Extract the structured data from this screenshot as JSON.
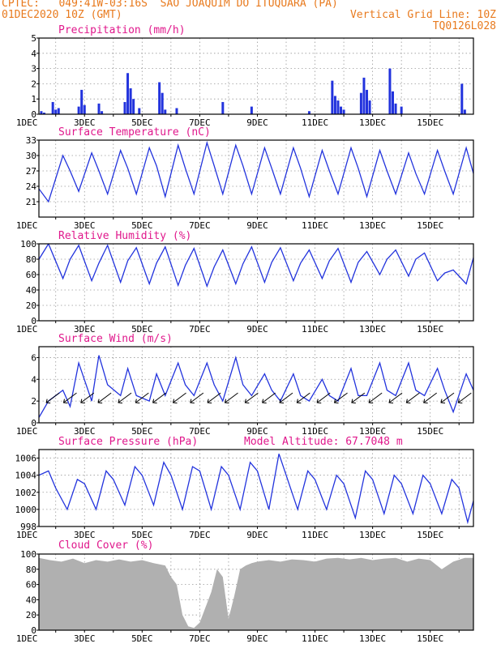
{
  "header": {
    "line1_left": "CPTEC:   049:41W-03:16S  SAO JOAQUIM DO ITUQUARA (PA)",
    "line2_left": "01DEC2020 10Z (GMT)",
    "line2_right": "Vertical Grid Line: 10Z",
    "line3_right": "TQ0126L028"
  },
  "colors": {
    "header": "#e87a1e",
    "title": "#e0188c",
    "line": "#2233dd",
    "bar": "#2233dd",
    "cloud": "#b0b0b0",
    "arrow": "#000000"
  },
  "chart_data": [
    {
      "id": "precip",
      "type": "bar",
      "title": "Precipitation (mm/h)",
      "ylim": [
        0,
        5
      ],
      "yticks": [
        0,
        1,
        2,
        3,
        4,
        5
      ],
      "x_range_days": [
        1.417,
        16.5
      ],
      "xtick_labels": [
        "1DEC",
        "3DEC",
        "5DEC",
        "7DEC",
        "9DEC",
        "11DEC",
        "13DEC",
        "15DEC"
      ],
      "x_days": [
        1.5,
        1.6,
        1.9,
        2.0,
        2.1,
        2.8,
        2.9,
        3.0,
        3.5,
        3.6,
        4.4,
        4.5,
        4.6,
        4.7,
        4.9,
        5.6,
        5.7,
        5.8,
        6.2,
        7.8,
        8.8,
        10.8,
        11.6,
        11.7,
        11.8,
        11.9,
        12.0,
        12.6,
        12.7,
        12.8,
        12.9,
        13.6,
        13.7,
        13.8,
        14.0,
        16.1,
        16.2
      ],
      "values": [
        0.2,
        0.1,
        0.8,
        0.3,
        0.4,
        0.5,
        1.6,
        0.6,
        0.7,
        0.2,
        0.8,
        2.7,
        1.7,
        1.0,
        0.4,
        2.1,
        1.4,
        0.3,
        0.4,
        0.8,
        0.5,
        0.2,
        2.2,
        1.2,
        0.9,
        0.5,
        0.3,
        1.4,
        2.4,
        1.6,
        0.9,
        3.0,
        1.5,
        0.7,
        0.5,
        2.0,
        0.3
      ]
    },
    {
      "id": "temp",
      "type": "line",
      "title": "Surface Temperature (nC)",
      "ylim": [
        18,
        33
      ],
      "yticks": [
        21,
        24,
        27,
        30,
        33
      ],
      "x_range_days": [
        1.417,
        16.5
      ],
      "xtick_labels": [
        "1DEC",
        "3DEC",
        "5DEC",
        "7DEC",
        "9DEC",
        "11DEC",
        "13DEC",
        "15DEC"
      ],
      "x_days": [
        1.42,
        1.75,
        2.25,
        2.5,
        2.8,
        3.25,
        3.5,
        3.8,
        4.25,
        4.5,
        4.8,
        5.25,
        5.5,
        5.8,
        6.25,
        6.5,
        6.8,
        7.25,
        7.5,
        7.8,
        8.25,
        8.5,
        8.8,
        9.25,
        9.5,
        9.8,
        10.25,
        10.5,
        10.8,
        11.25,
        11.5,
        11.8,
        12.25,
        12.5,
        12.8,
        13.25,
        13.5,
        13.8,
        14.25,
        14.5,
        14.8,
        15.25,
        15.5,
        15.8,
        16.25,
        16.5
      ],
      "values": [
        23.5,
        21.0,
        30.0,
        27.0,
        23.0,
        30.5,
        27.0,
        22.5,
        31.0,
        27.5,
        22.5,
        31.5,
        28.0,
        22.0,
        32.0,
        27.5,
        22.5,
        32.5,
        28.0,
        22.5,
        32.0,
        28.0,
        22.5,
        31.5,
        27.5,
        22.5,
        31.5,
        27.5,
        22.0,
        31.0,
        27.0,
        22.5,
        31.5,
        27.5,
        22.0,
        31.0,
        27.0,
        22.5,
        30.5,
        26.5,
        22.5,
        31.0,
        27.0,
        22.5,
        31.5,
        26.5
      ]
    },
    {
      "id": "rh",
      "type": "line",
      "title": "Relative Humidity (%)",
      "ylim": [
        0,
        100
      ],
      "yticks": [
        0,
        20,
        40,
        60,
        80,
        100
      ],
      "x_range_days": [
        1.417,
        16.5
      ],
      "xtick_labels": [
        "1DEC",
        "3DEC",
        "5DEC",
        "7DEC",
        "9DEC",
        "11DEC",
        "13DEC",
        "15DEC"
      ],
      "x_days": [
        1.42,
        1.75,
        2.25,
        2.5,
        2.8,
        3.25,
        3.5,
        3.8,
        4.25,
        4.5,
        4.8,
        5.25,
        5.5,
        5.8,
        6.25,
        6.5,
        6.8,
        7.25,
        7.5,
        7.8,
        8.25,
        8.5,
        8.8,
        9.25,
        9.5,
        9.8,
        10.25,
        10.5,
        10.8,
        11.25,
        11.5,
        11.8,
        12.25,
        12.5,
        12.8,
        13.25,
        13.5,
        13.8,
        14.25,
        14.5,
        14.8,
        15.25,
        15.5,
        15.8,
        16.25,
        16.5
      ],
      "values": [
        80,
        100,
        55,
        80,
        98,
        52,
        75,
        98,
        50,
        78,
        95,
        48,
        75,
        96,
        46,
        72,
        94,
        45,
        70,
        92,
        48,
        74,
        96,
        50,
        76,
        95,
        52,
        75,
        92,
        55,
        78,
        94,
        50,
        76,
        90,
        60,
        80,
        92,
        58,
        80,
        88,
        52,
        62,
        66,
        48,
        82
      ]
    },
    {
      "id": "wind",
      "type": "line",
      "title": "Surface Wind (m/s)",
      "ylim": [
        0,
        7
      ],
      "yticks": [
        0,
        2,
        4,
        6
      ],
      "x_range_days": [
        1.417,
        16.5
      ],
      "xtick_labels": [
        "1DEC",
        "3DEC",
        "5DEC",
        "7DEC",
        "9DEC",
        "11DEC",
        "13DEC",
        "15DEC"
      ],
      "x_days": [
        1.42,
        1.75,
        2.25,
        2.5,
        2.8,
        3.25,
        3.5,
        3.8,
        4.25,
        4.5,
        4.8,
        5.25,
        5.5,
        5.8,
        6.25,
        6.5,
        6.8,
        7.25,
        7.5,
        7.8,
        8.25,
        8.5,
        8.8,
        9.25,
        9.5,
        9.8,
        10.25,
        10.5,
        10.8,
        11.25,
        11.5,
        11.8,
        12.25,
        12.5,
        12.8,
        13.25,
        13.5,
        13.8,
        14.25,
        14.5,
        14.8,
        15.25,
        15.5,
        15.8,
        16.25,
        16.5
      ],
      "values": [
        0.5,
        2.0,
        3.0,
        1.5,
        5.5,
        2.0,
        6.2,
        3.5,
        2.5,
        5.0,
        2.5,
        2.0,
        4.5,
        2.5,
        5.5,
        3.5,
        2.5,
        5.5,
        3.5,
        2.0,
        6.0,
        3.5,
        2.5,
        4.5,
        3.0,
        2.0,
        4.5,
        2.5,
        2.0,
        4.0,
        2.5,
        2.0,
        5.0,
        2.5,
        2.5,
        5.5,
        3.0,
        2.5,
        5.5,
        3.0,
        2.5,
        5.0,
        3.0,
        1.0,
        4.5,
        3.0
      ],
      "arrows_x_days": [
        1.9,
        2.5,
        3.1,
        3.7,
        4.4,
        5.0,
        5.6,
        6.3,
        6.9,
        7.5,
        8.1,
        8.8,
        9.4,
        10.0,
        10.6,
        11.3,
        11.9,
        12.5,
        13.1,
        13.8,
        14.4,
        15.0,
        15.6,
        16.2
      ]
    },
    {
      "id": "pressure",
      "type": "line",
      "title": "Surface Pressure (hPa)",
      "annotation": "Model Altitude: 67.7048 m",
      "ylim": [
        998,
        1007
      ],
      "yticks": [
        998,
        1000,
        1002,
        1004,
        1006
      ],
      "x_range_days": [
        1.417,
        16.5
      ],
      "xtick_labels": [
        "1DEC",
        "3DEC",
        "5DEC",
        "7DEC",
        "9DEC",
        "11DEC",
        "13DEC",
        "15DEC"
      ],
      "x_days": [
        1.42,
        1.75,
        2.0,
        2.4,
        2.75,
        3.0,
        3.4,
        3.75,
        4.0,
        4.4,
        4.75,
        5.0,
        5.4,
        5.75,
        6.0,
        6.4,
        6.75,
        7.0,
        7.4,
        7.75,
        8.0,
        8.4,
        8.75,
        9.0,
        9.4,
        9.75,
        10.0,
        10.4,
        10.75,
        11.0,
        11.4,
        11.75,
        12.0,
        12.4,
        12.75,
        13.0,
        13.4,
        13.75,
        14.0,
        14.4,
        14.75,
        15.0,
        15.4,
        15.75,
        16.0,
        16.3,
        16.5
      ],
      "values": [
        1004.0,
        1004.5,
        1002.5,
        1000.0,
        1003.5,
        1003.0,
        1000.0,
        1004.5,
        1003.5,
        1000.5,
        1005.0,
        1004.0,
        1000.5,
        1005.5,
        1004.0,
        1000.0,
        1005.0,
        1004.5,
        1000.0,
        1005.0,
        1004.0,
        1000.0,
        1005.5,
        1004.5,
        1000.0,
        1006.5,
        1004.0,
        1000.0,
        1004.5,
        1003.5,
        1000.0,
        1004.0,
        1003.0,
        999.0,
        1004.5,
        1003.5,
        999.5,
        1004.0,
        1003.0,
        999.5,
        1004.0,
        1003.0,
        999.5,
        1003.5,
        1002.5,
        998.5,
        1001.0
      ]
    },
    {
      "id": "cloud",
      "type": "area",
      "title": "Cloud Cover (%)",
      "ylim": [
        0,
        100
      ],
      "yticks": [
        0,
        20,
        40,
        60,
        80,
        100
      ],
      "x_range_days": [
        1.417,
        16.5
      ],
      "xtick_labels": [
        "1DEC",
        "3DEC",
        "5DEC",
        "7DEC",
        "9DEC",
        "11DEC",
        "13DEC",
        "15DEC"
      ],
      "x_days": [
        1.42,
        1.8,
        2.2,
        2.6,
        3.0,
        3.4,
        3.8,
        4.2,
        4.6,
        5.0,
        5.4,
        5.8,
        6.0,
        6.2,
        6.4,
        6.6,
        6.8,
        7.0,
        7.2,
        7.4,
        7.6,
        7.8,
        8.0,
        8.2,
        8.4,
        8.6,
        8.8,
        9.0,
        9.4,
        9.8,
        10.2,
        10.6,
        11.0,
        11.4,
        11.8,
        12.2,
        12.6,
        13.0,
        13.4,
        13.8,
        14.2,
        14.6,
        15.0,
        15.4,
        15.8,
        16.2,
        16.5
      ],
      "values": [
        95,
        92,
        90,
        94,
        88,
        92,
        90,
        93,
        90,
        92,
        88,
        85,
        70,
        60,
        20,
        5,
        3,
        10,
        30,
        50,
        80,
        70,
        15,
        45,
        80,
        85,
        88,
        90,
        92,
        90,
        93,
        92,
        90,
        94,
        95,
        93,
        95,
        92,
        94,
        95,
        90,
        94,
        92,
        80,
        90,
        95,
        95
      ]
    }
  ]
}
